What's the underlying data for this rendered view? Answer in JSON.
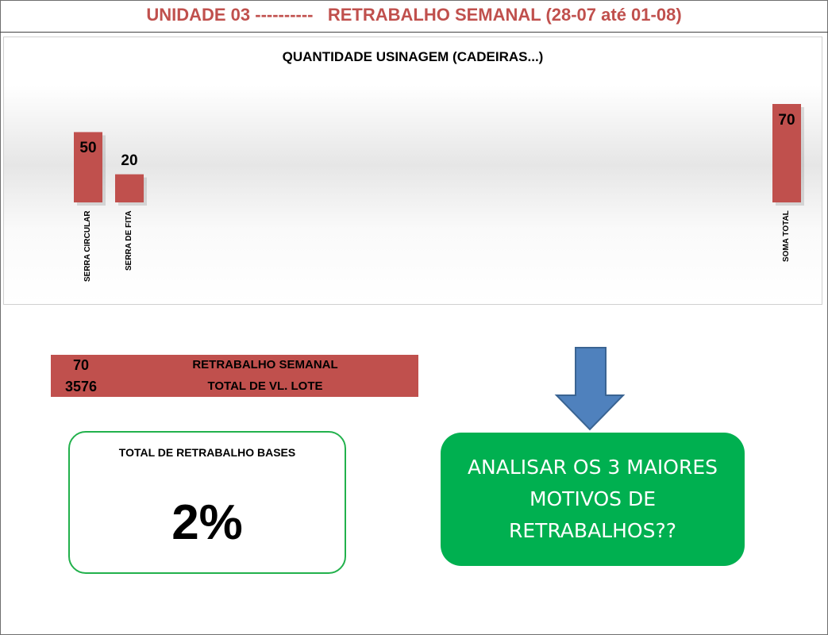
{
  "header": {
    "title": "UNIDADE 03 ----------   RETRABALHO SEMANAL (28-07 até 01-08)"
  },
  "chart_data": {
    "type": "bar",
    "title": "QUANTIDADE USINAGEM (CADEIRAS...)",
    "categories": [
      "SERRA CIRCULAR",
      "SERRA DE FITA",
      "SOMA TOTAL"
    ],
    "values": [
      50,
      20,
      70
    ],
    "ylim": [
      0,
      70
    ],
    "grid": false,
    "legend": "none",
    "bar_color": "#c0504d"
  },
  "summary": {
    "rows": [
      {
        "value": "70",
        "label": "RETRABALHO SEMANAL"
      },
      {
        "value": "3576",
        "label": "TOTAL DE VL. LOTE"
      }
    ]
  },
  "kpi": {
    "label": "TOTAL DE RETRABALHO BASES",
    "value": "2%"
  },
  "action": {
    "text": "ANALISAR OS 3 MAIORES MOTIVOS DE RETRABALHOS??"
  },
  "colors": {
    "accent_red": "#c0504d",
    "kpi_border": "#22b14c",
    "action_green": "#00b050",
    "arrow_blue": "#4f81bd"
  }
}
